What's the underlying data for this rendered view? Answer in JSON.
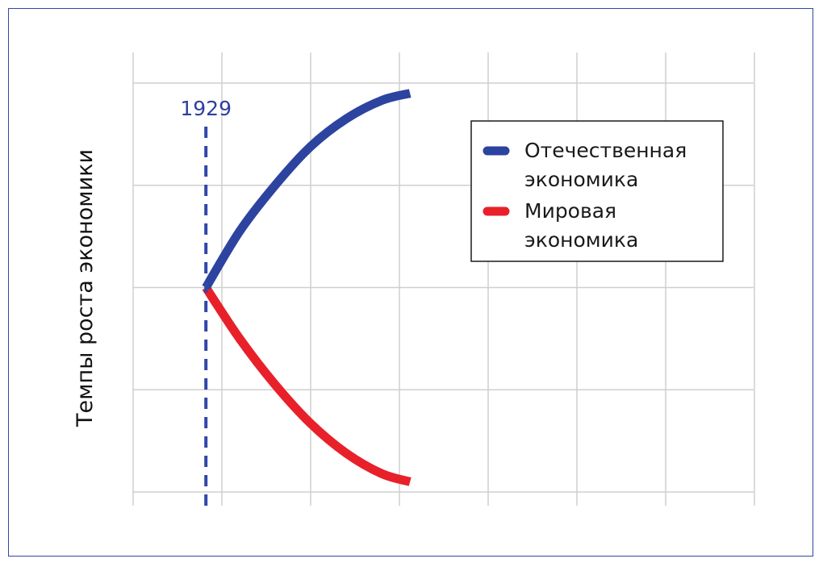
{
  "chart_data": {
    "type": "line",
    "ylabel": "Темпы роста экономики",
    "xlabel": "",
    "grid": true,
    "legend_position": "top-right",
    "x_domain": [
      0,
      7
    ],
    "y_domain": [
      -2,
      2
    ],
    "vertical_marker": {
      "x": 0.82,
      "label": "1929",
      "color": "#2f47a8",
      "style": "dashed"
    },
    "series": [
      {
        "name": "Отечественная экономика",
        "color": "#2d43a0",
        "x": [
          0.82,
          1.2,
          1.6,
          2.0,
          2.4,
          2.8,
          3.12
        ],
        "y": [
          0.0,
          0.55,
          1.0,
          1.38,
          1.65,
          1.83,
          1.9
        ]
      },
      {
        "name": "Мировая экономика",
        "color": "#e8202a",
        "x": [
          0.82,
          1.2,
          1.6,
          2.0,
          2.4,
          2.8,
          3.12
        ],
        "y": [
          0.0,
          -0.5,
          -0.95,
          -1.33,
          -1.62,
          -1.82,
          -1.9
        ]
      }
    ]
  }
}
